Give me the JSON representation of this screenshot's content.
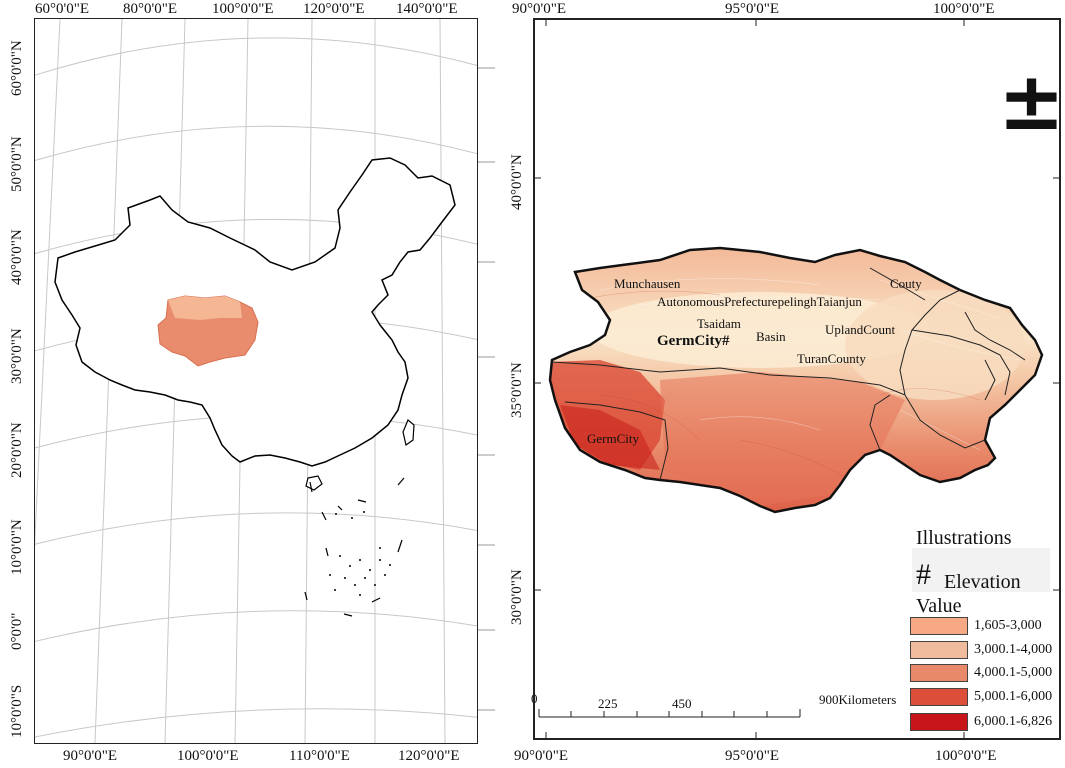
{
  "overview_map": {
    "top_lon_labels": [
      "60°0'0\"E",
      "80°0'0\"E",
      "100°0'0\"E",
      "120°0'0\"E",
      "140°0'0\"E"
    ],
    "bottom_lon_labels": [
      "90°0'0\"E",
      "100°0'0\"E",
      "110°0'0\"E",
      "120°0'0\"E"
    ],
    "left_lat_labels": [
      "60°0'0\"N",
      "50°0'0\"N",
      "40°0'0\"N",
      "30°0'0\"N",
      "20°0'0\"N",
      "10°0'0\"N",
      "0°0'0\"",
      "10°0'0\"S"
    ]
  },
  "detail_map": {
    "top_lon_labels": [
      "90°0'0\"E",
      "95°0'0\"E",
      "100°0'0\"E"
    ],
    "bottom_lon_labels": [
      "90°0'0\"E",
      "95°0'0\"E",
      "100°0'0\"E"
    ],
    "left_lat_labels": [
      "40°0'0\"N",
      "35°0'0\"N",
      "30°0'0\"N"
    ],
    "place_labels": {
      "munchausen": "Munchausen",
      "prefecture": "AutonomousPrefecturepelinghTaianjun",
      "couty": "Couty",
      "tsaidam": "Tsaidam",
      "basin": "Basin",
      "upland": "UplandCount",
      "germcity_main": "GermCity#",
      "turan": "TuranCounty",
      "germcity_sw": "GermCity"
    },
    "scale_bar": {
      "tick_labels": [
        "225",
        "450",
        "900Kilometers"
      ],
      "zero_label": "0"
    },
    "north_arrow_symbol": "±"
  },
  "legend": {
    "title_line1": "Illustrations",
    "title_symbol": "#",
    "title_line2": "Elevation",
    "title_line3": "Value",
    "classes": [
      {
        "label": "1,605-3,000",
        "color": "#f6a984"
      },
      {
        "label": "3,000.1-4,000",
        "color": "#f1bc9e"
      },
      {
        "label": "4,000.1-5,000",
        "color": "#e88a6a"
      },
      {
        "label": "5,000.1-6,000",
        "color": "#dc4e3a"
      },
      {
        "label": "6,000.1-6,826",
        "color": "#c8151a"
      }
    ]
  }
}
